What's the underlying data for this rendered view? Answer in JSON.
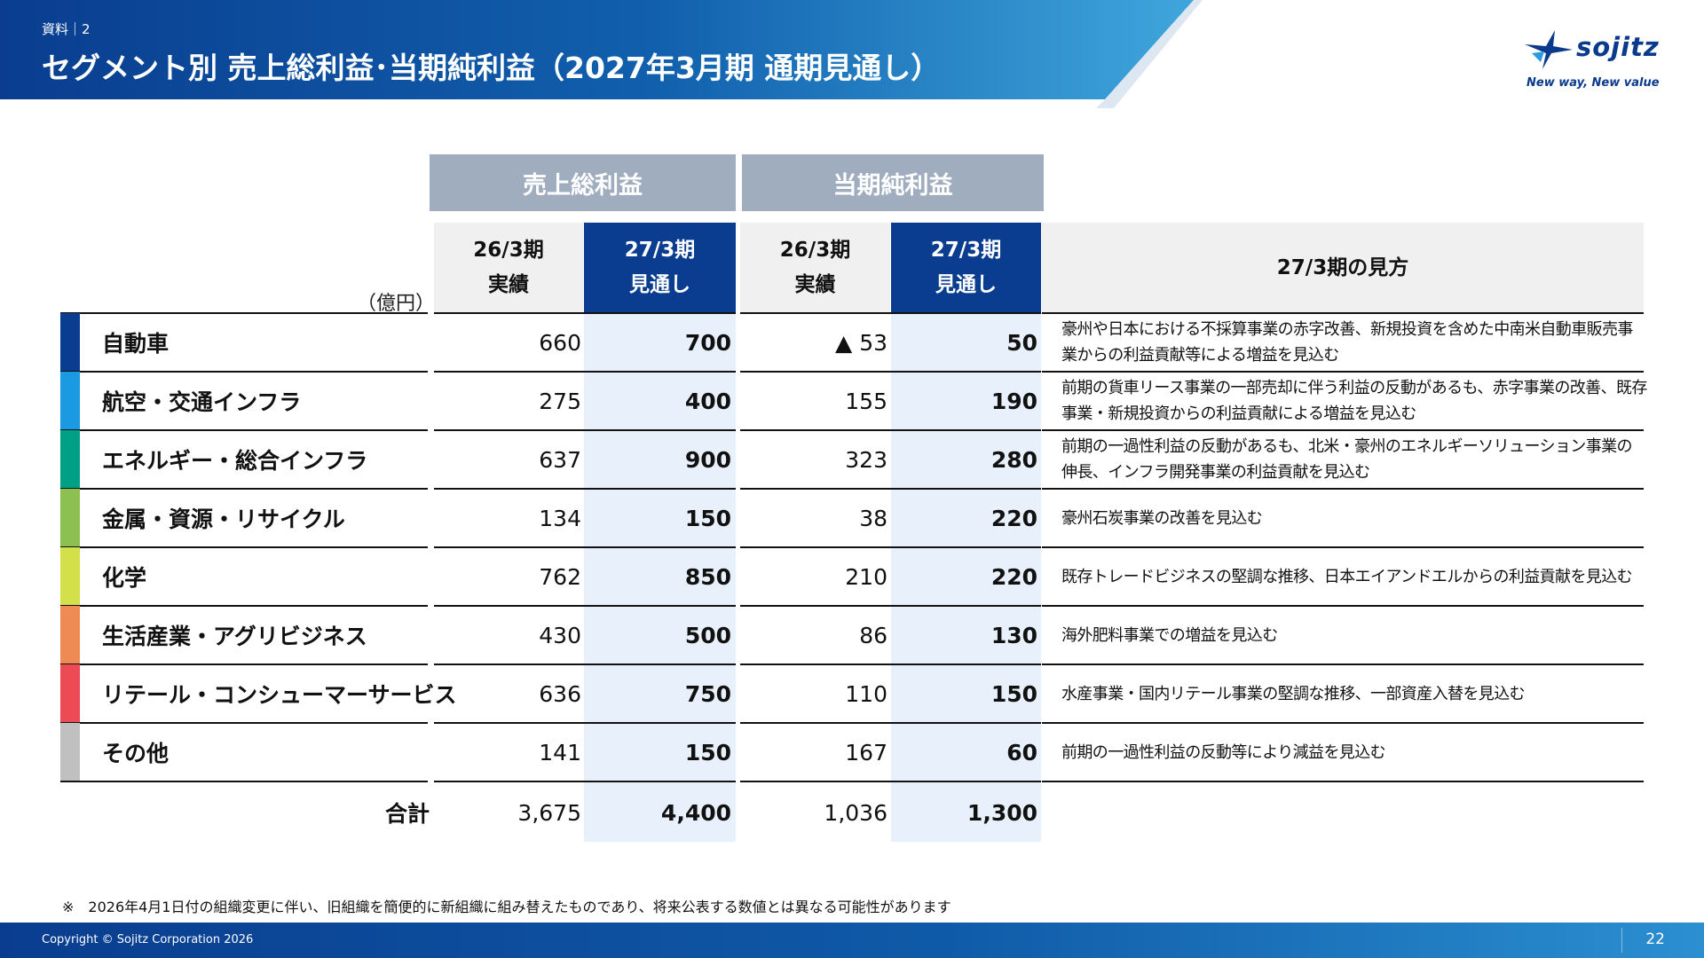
{
  "header": {
    "label": "資料｜2",
    "title": "セグメント別 売上総利益･当期純利益（2027年3月期 通期見通し）"
  },
  "logo": {
    "word": "sojitz",
    "tagline": "New way, New value"
  },
  "table": {
    "unit": "（億円）",
    "groups": {
      "gross_profit": "売上総利益",
      "net_income": "当期純利益"
    },
    "columns": {
      "gp_actual": [
        "26/3期",
        "実績"
      ],
      "gp_forecast": [
        "27/3期",
        "見通し"
      ],
      "ni_actual": [
        "26/3期",
        "実績"
      ],
      "ni_forecast": [
        "27/3期",
        "見通し"
      ],
      "outlook": "27/3期の見方"
    },
    "rows": [
      {
        "name": "自動車",
        "color": "#0a3d8f",
        "gp_actual": "660",
        "gp_forecast": "700",
        "ni_actual": "▲ 53",
        "ni_forecast": "50",
        "comment": "豪州や日本における不採算事業の赤字改善、新規投資を含めた中南米自動車販売事業からの利益貢献等による増益を見込む"
      },
      {
        "name": "航空・交通インフラ",
        "color": "#1a9ae0",
        "gp_actual": "275",
        "gp_forecast": "400",
        "ni_actual": "155",
        "ni_forecast": "190",
        "comment": "前期の貨車リース事業の一部売却に伴う利益の反動があるも、赤字事業の改善、既存事業・新規投資からの利益貢献による増益を見込む"
      },
      {
        "name": "エネルギー・総合インフラ",
        "color": "#00a087",
        "gp_actual": "637",
        "gp_forecast": "900",
        "ni_actual": "323",
        "ni_forecast": "280",
        "comment": "前期の一過性利益の反動があるも、北米・豪州のエネルギーソリューション事業の伸長、インフラ開発事業の利益貢献を見込む"
      },
      {
        "name": "金属・資源・リサイクル",
        "color": "#8cc152",
        "gp_actual": "134",
        "gp_forecast": "150",
        "ni_actual": "38",
        "ni_forecast": "220",
        "comment": "豪州石炭事業の改善を見込む"
      },
      {
        "name": "化学",
        "color": "#d4e04a",
        "gp_actual": "762",
        "gp_forecast": "850",
        "ni_actual": "210",
        "ni_forecast": "220",
        "comment": "既存トレードビジネスの堅調な推移、日本エイアンドエルからの利益貢献を見込む"
      },
      {
        "name": "生活産業・アグリビジネス",
        "color": "#f08a55",
        "gp_actual": "430",
        "gp_forecast": "500",
        "ni_actual": "86",
        "ni_forecast": "130",
        "comment": "海外肥料事業での増益を見込む"
      },
      {
        "name": "リテール・コンシューマーサービス",
        "color": "#ec4a55",
        "gp_actual": "636",
        "gp_forecast": "750",
        "ni_actual": "110",
        "ni_forecast": "150",
        "comment": "水産事業・国内リテール事業の堅調な推移、一部資産入替を見込む"
      },
      {
        "name": "その他",
        "color": "#c0c0c0",
        "gp_actual": "141",
        "gp_forecast": "150",
        "ni_actual": "167",
        "ni_forecast": "60",
        "comment": "前期の一過性利益の反動等により減益を見込む"
      }
    ],
    "total": {
      "name": "合計",
      "gp_actual": "3,675",
      "gp_forecast": "4,400",
      "ni_actual": "1,036",
      "ni_forecast": "1,300"
    }
  },
  "footnote": "※　2026年4月1日付の組織変更に伴い、旧組織を簡便的に新組織に組み替えたものであり、将来公表する数値とは異なる可能性があります",
  "footer": {
    "copyright": "Copyright © Sojitz Corporation 2026",
    "page": "22"
  }
}
